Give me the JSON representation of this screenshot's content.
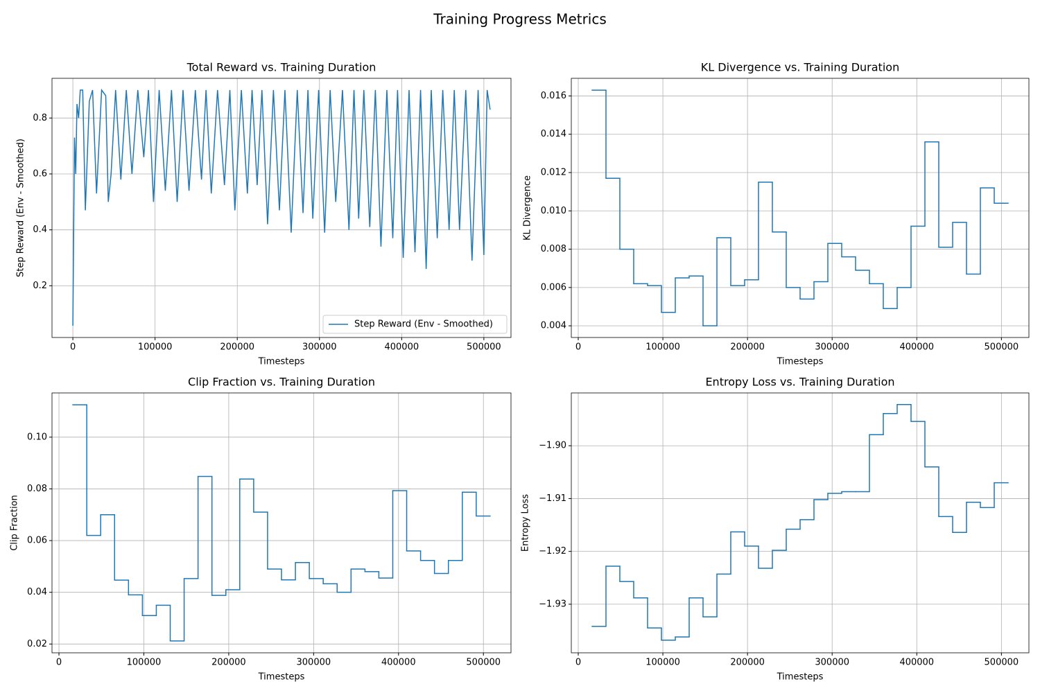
{
  "title": "Training Progress Metrics",
  "chart_data": [
    {
      "type": "line",
      "title": "Total Reward vs. Training Duration",
      "xlabel": "Timesteps",
      "ylabel": "Step Reward (Env - Smoothed)",
      "x": [
        0,
        2000,
        3500,
        5000,
        7000,
        9000,
        12000,
        15200,
        20000,
        24000,
        28800,
        35000,
        40000,
        43100,
        46500,
        52000,
        58400,
        65000,
        71900,
        79000,
        86300,
        92000,
        98100,
        105000,
        112500,
        120000,
        126900,
        134000,
        141300,
        149000,
        156500,
        162000,
        168400,
        176000,
        184400,
        191000,
        197100,
        205000,
        212300,
        218000,
        224200,
        230000,
        236900,
        244000,
        251300,
        258000,
        265600,
        273000,
        280000,
        286000,
        291900,
        299000,
        306300,
        313000,
        319800,
        328000,
        335900,
        342000,
        347700,
        354000,
        361200,
        368000,
        374800,
        382000,
        389200,
        395000,
        401900,
        409000,
        416200,
        423000,
        429800,
        436000,
        443300,
        450000,
        457700,
        464000,
        470400,
        478000,
        485600,
        493000,
        500000,
        504000,
        507600
      ],
      "series": [
        {
          "name": "Step Reward (Env - Smoothed)",
          "color": "#1f77b4",
          "values": [
            0.057,
            0.73,
            0.6,
            0.85,
            0.8,
            0.9,
            0.9,
            0.47,
            0.86,
            0.9,
            0.53,
            0.9,
            0.88,
            0.5,
            0.6,
            0.9,
            0.58,
            0.9,
            0.6,
            0.9,
            0.66,
            0.9,
            0.5,
            0.9,
            0.54,
            0.9,
            0.5,
            0.9,
            0.54,
            0.9,
            0.58,
            0.9,
            0.53,
            0.9,
            0.56,
            0.9,
            0.47,
            0.9,
            0.53,
            0.9,
            0.56,
            0.9,
            0.42,
            0.9,
            0.47,
            0.9,
            0.39,
            0.9,
            0.46,
            0.9,
            0.44,
            0.9,
            0.39,
            0.9,
            0.5,
            0.9,
            0.4,
            0.9,
            0.44,
            0.9,
            0.41,
            0.9,
            0.34,
            0.9,
            0.37,
            0.9,
            0.3,
            0.9,
            0.32,
            0.9,
            0.26,
            0.9,
            0.37,
            0.9,
            0.4,
            0.9,
            0.4,
            0.9,
            0.29,
            0.9,
            0.31,
            0.9,
            0.83
          ]
        }
      ],
      "xlim": [
        -25380,
        533000
      ],
      "ylim": [
        0.015,
        0.942
      ],
      "xticks": [
        0,
        100000,
        200000,
        300000,
        400000,
        500000
      ],
      "yticks": [
        0.2,
        0.4,
        0.6,
        0.8
      ],
      "grid": true,
      "legend": "lower right"
    },
    {
      "type": "stairs",
      "title": "KL Divergence vs. Training Duration",
      "xlabel": "Timesteps",
      "ylabel": "KL Divergence",
      "edges": [
        16384,
        32768,
        49152,
        65536,
        81920,
        98304,
        114688,
        131072,
        147456,
        163840,
        180224,
        196608,
        212992,
        229376,
        245760,
        262144,
        278528,
        294912,
        311296,
        327680,
        344064,
        360448,
        376832,
        393216,
        409600,
        425984,
        442368,
        458752,
        475136,
        491520,
        507904
      ],
      "series": [
        {
          "color": "#1f77b4",
          "values": [
            0.0163,
            0.0117,
            0.008,
            0.0062,
            0.0061,
            0.0047,
            0.0065,
            0.0066,
            0.004,
            0.0086,
            0.0061,
            0.0064,
            0.0115,
            0.0089,
            0.006,
            0.0054,
            0.0063,
            0.0083,
            0.0076,
            0.0069,
            0.0062,
            0.0049,
            0.006,
            0.0092,
            0.0136,
            0.0081,
            0.0094,
            0.0067,
            0.0112,
            0.0104
          ]
        }
      ],
      "xlim": [
        -8192,
        532480
      ],
      "ylim": [
        0.00339,
        0.01692
      ],
      "xticks": [
        0,
        100000,
        200000,
        300000,
        400000,
        500000
      ],
      "yticks": [
        {
          "value": 0.004,
          "label": "0.004"
        },
        {
          "value": 0.006,
          "label": "0.006"
        },
        {
          "value": 0.008,
          "label": "0.008"
        },
        {
          "value": 0.01,
          "label": "0.010"
        },
        {
          "value": 0.012,
          "label": "0.012"
        },
        {
          "value": 0.014,
          "label": "0.014"
        },
        {
          "value": 0.016,
          "label": "0.016"
        }
      ],
      "grid": true
    },
    {
      "type": "stairs",
      "title": "Clip Fraction vs. Training Duration",
      "xlabel": "Timesteps",
      "ylabel": "Clip Fraction",
      "edges": [
        16384,
        32768,
        49152,
        65536,
        81920,
        98304,
        114688,
        131072,
        147456,
        163840,
        180224,
        196608,
        212992,
        229376,
        245760,
        262144,
        278528,
        294912,
        311296,
        327680,
        344064,
        360448,
        376832,
        393216,
        409600,
        425984,
        442368,
        458752,
        475136,
        491520,
        507904
      ],
      "series": [
        {
          "color": "#1f77b4",
          "values": [
            0.1125,
            0.062,
            0.07,
            0.0447,
            0.039,
            0.031,
            0.035,
            0.0212,
            0.0453,
            0.0848,
            0.0388,
            0.041,
            0.0838,
            0.071,
            0.049,
            0.0448,
            0.0515,
            0.0453,
            0.0433,
            0.04,
            0.049,
            0.048,
            0.0455,
            0.0793,
            0.056,
            0.0523,
            0.0473,
            0.0523,
            0.0787,
            0.0695
          ]
        }
      ],
      "xlim": [
        -8192,
        532480
      ],
      "ylim": [
        0.0166,
        0.1171
      ],
      "xticks": [
        0,
        100000,
        200000,
        300000,
        400000,
        500000
      ],
      "yticks": [
        0.02,
        0.04,
        0.06,
        0.08,
        {
          "value": 0.1,
          "label": "0.10"
        }
      ],
      "grid": true
    },
    {
      "type": "stairs",
      "title": "Entropy Loss vs. Training Duration",
      "xlabel": "Timesteps",
      "ylabel": "Entropy Loss",
      "edges": [
        16384,
        32768,
        49152,
        65536,
        81920,
        98304,
        114688,
        131072,
        147456,
        163840,
        180224,
        196608,
        212992,
        229376,
        245760,
        262144,
        278528,
        294912,
        311296,
        327680,
        344064,
        360448,
        376832,
        393216,
        409600,
        425984,
        442368,
        458752,
        475136,
        491520,
        507904
      ],
      "series": [
        {
          "color": "#1f77b4",
          "values": [
            -1.9342,
            -1.9228,
            -1.9257,
            -1.9288,
            -1.9345,
            -1.9368,
            -1.9362,
            -1.9288,
            -1.9324,
            -1.9243,
            -1.9163,
            -1.919,
            -1.9232,
            -1.9198,
            -1.9158,
            -1.914,
            -1.9102,
            -1.909,
            -1.9087,
            -1.9087,
            -1.8979,
            -1.8939,
            -1.8922,
            -1.8954,
            -1.904,
            -1.9134,
            -1.9164,
            -1.9107,
            -1.9117,
            -1.907
          ]
        }
      ],
      "xlim": [
        -8192,
        532480
      ],
      "ylim": [
        -1.9392,
        -1.89
      ],
      "xticks": [
        0,
        100000,
        200000,
        300000,
        400000,
        500000
      ],
      "yticks": [
        {
          "value": -1.93,
          "label": "−1.93"
        },
        {
          "value": -1.92,
          "label": "−1.92"
        },
        {
          "value": -1.91,
          "label": "−1.91"
        },
        {
          "value": -1.9,
          "label": "−1.90"
        }
      ],
      "grid": true
    }
  ]
}
